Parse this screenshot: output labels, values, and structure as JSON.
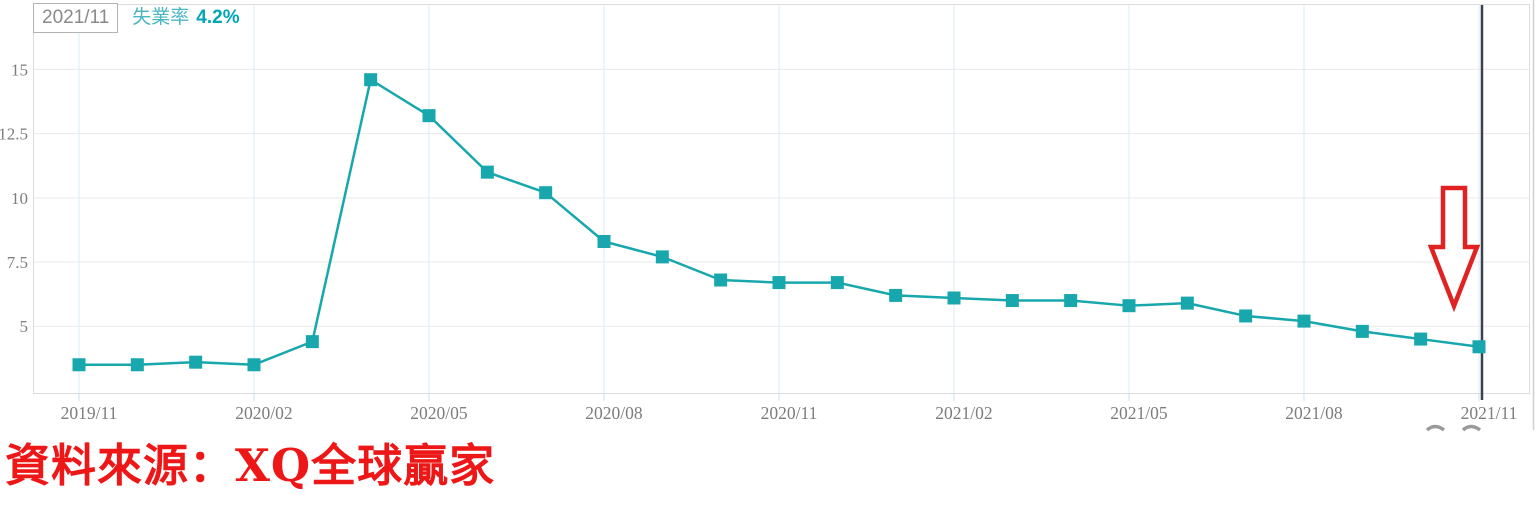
{
  "header_tooltip": {
    "date": "2021/11",
    "series_label": "失業率",
    "value": "4.2%"
  },
  "source": {
    "text": "資料來源：XQ全球贏家"
  },
  "colors": {
    "line": "#17a7ad",
    "marker": "#17a7ad",
    "series_label_text": "#4bb6c2",
    "value_text": "#00a6b6",
    "tooltip_date_text": "#8a8a8a",
    "axis_text": "#7d7d7d",
    "grid_horizontal": "#e9e9e9",
    "grid_vertical": "#d9ecf6",
    "plot_border": "#dcdcdc",
    "crosshair": "#39424e",
    "arrow_red": "#e02222",
    "source_red": "#ee1717",
    "watermark_gray": "#9a9a9a"
  },
  "chart_data": {
    "type": "line",
    "series_name": "失業率",
    "x": [
      "2019/11",
      "2019/12",
      "2020/01",
      "2020/02",
      "2020/03",
      "2020/04",
      "2020/05",
      "2020/06",
      "2020/07",
      "2020/08",
      "2020/09",
      "2020/10",
      "2020/11",
      "2020/12",
      "2021/01",
      "2021/02",
      "2021/03",
      "2021/04",
      "2021/05",
      "2021/06",
      "2021/07",
      "2021/08",
      "2021/09",
      "2021/10",
      "2021/11"
    ],
    "series": [
      {
        "name": "失業率",
        "values": [
          3.5,
          3.5,
          3.6,
          3.5,
          4.4,
          14.6,
          13.2,
          11.0,
          10.2,
          8.3,
          7.7,
          6.8,
          6.7,
          6.7,
          6.2,
          6.1,
          6.0,
          6.0,
          5.8,
          5.9,
          5.4,
          5.2,
          4.8,
          4.5,
          4.2
        ]
      }
    ],
    "x_tick_labels": [
      "2019/11",
      "2020/02",
      "2020/05",
      "2020/08",
      "2020/11",
      "2021/02",
      "2021/05",
      "2021/08",
      "2021/11"
    ],
    "y_ticks": [
      5,
      7.5,
      10,
      12.5,
      15
    ],
    "ylim": [
      2.4,
      17.5
    ],
    "grid": true,
    "legend_position": "none",
    "marker": "square",
    "crosshair_at_x": "2021/11",
    "annotations": [
      {
        "type": "down-arrow",
        "near_x": "2021/11",
        "meaning": "highlight latest value"
      }
    ]
  }
}
